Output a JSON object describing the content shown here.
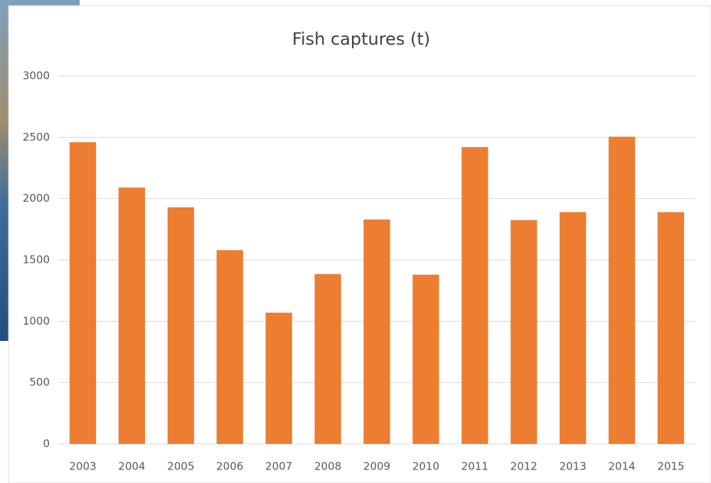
{
  "chart_data": {
    "type": "bar",
    "title": "Fish captures (t)",
    "categories": [
      "2003",
      "2004",
      "2005",
      "2006",
      "2007",
      "2008",
      "2009",
      "2010",
      "2011",
      "2012",
      "2013",
      "2014",
      "2015"
    ],
    "values": [
      2460,
      2090,
      1930,
      1580,
      1070,
      1385,
      1830,
      1380,
      2420,
      1825,
      1890,
      2505,
      1890
    ],
    "color": "#ed7d31",
    "ylim": [
      0,
      3000
    ],
    "yticks": [
      0,
      500,
      1000,
      1500,
      2000,
      2500,
      3000
    ],
    "grid": true
  }
}
